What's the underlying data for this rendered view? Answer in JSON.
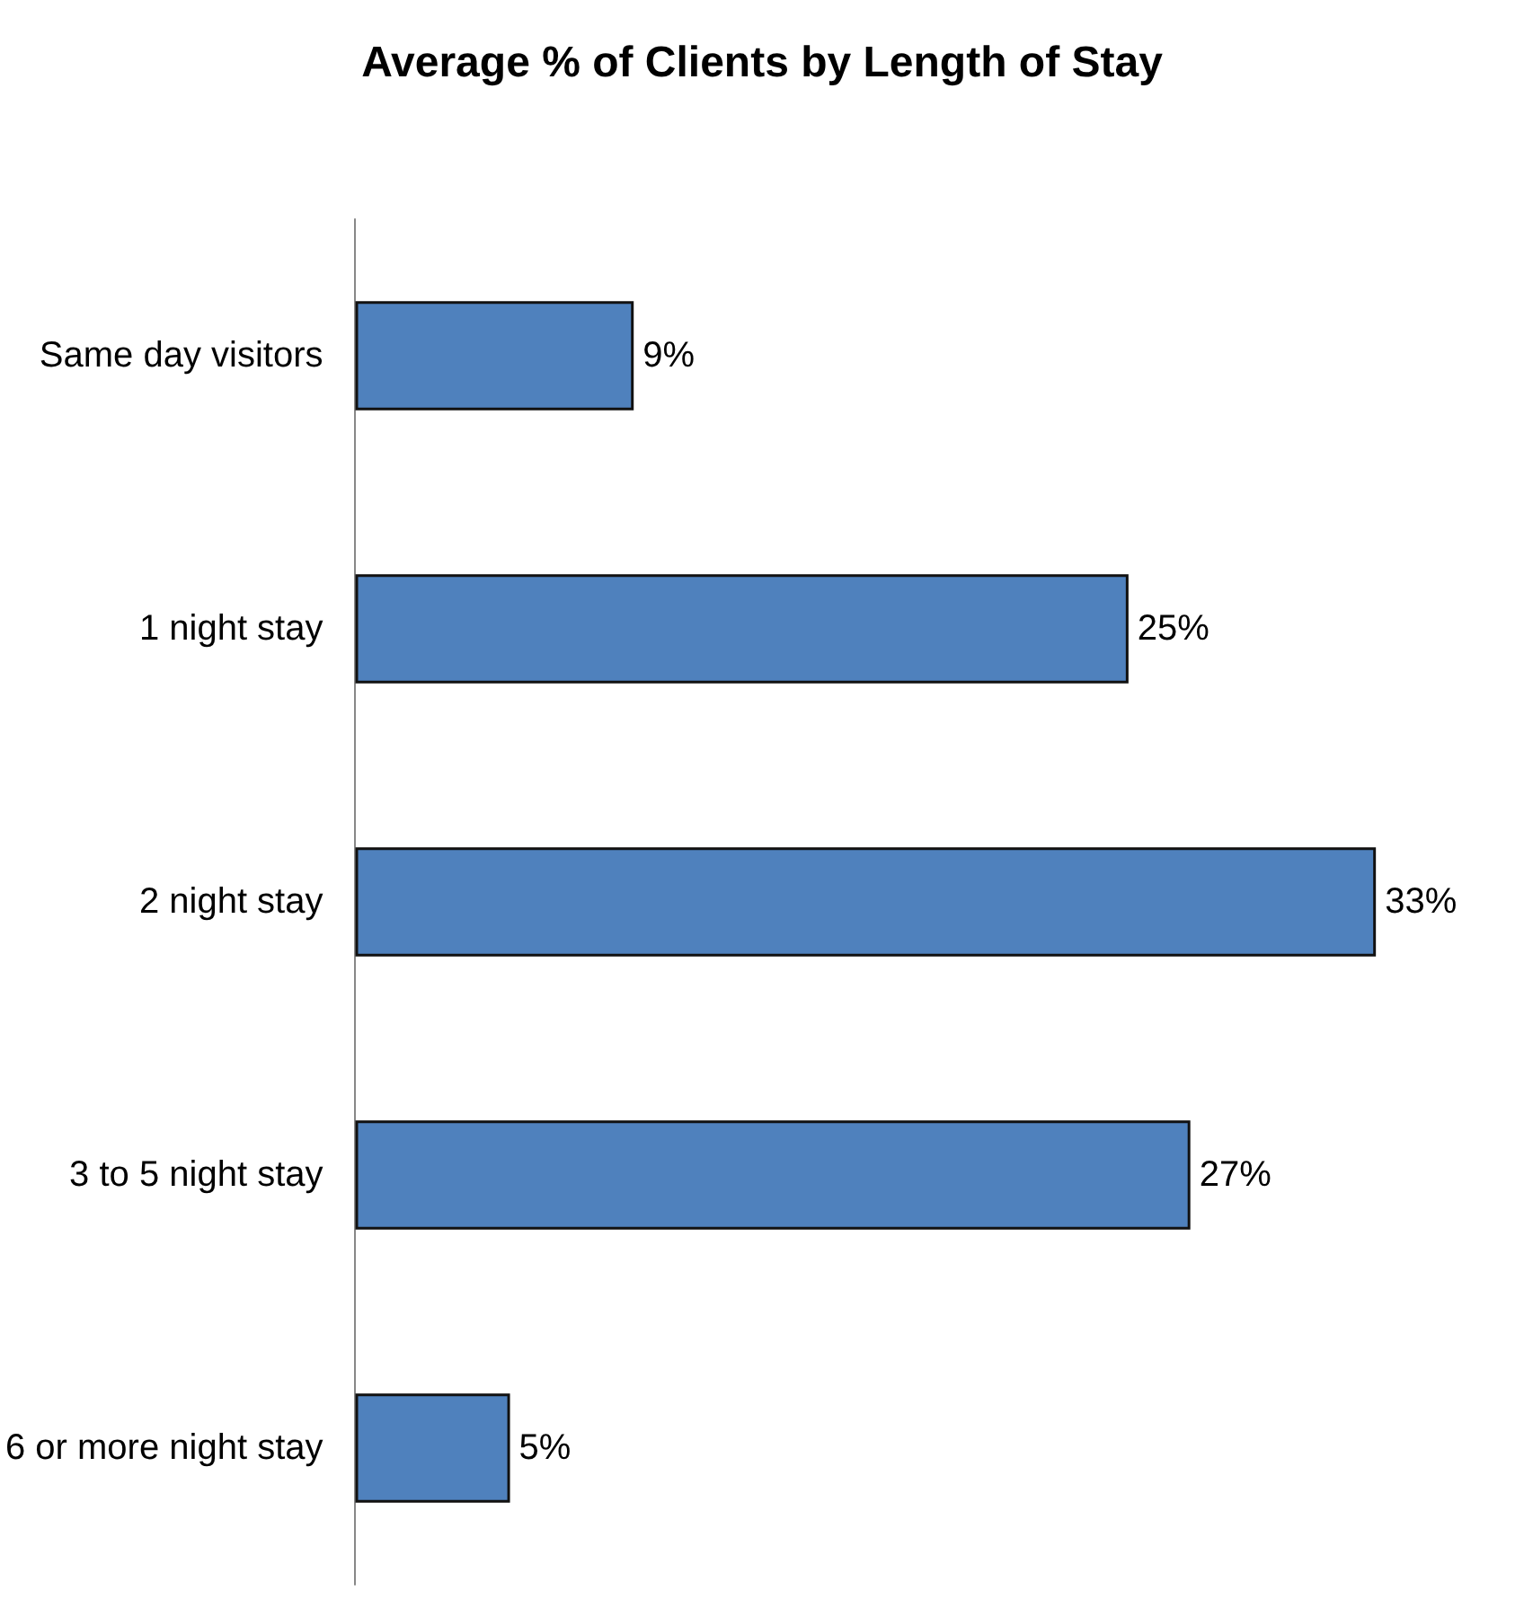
{
  "chart_data": {
    "type": "bar",
    "orientation": "horizontal",
    "title": "Average % of Clients by Length of Stay",
    "categories": [
      "Same day visitors",
      "1 night stay",
      "2 night stay",
      "3 to 5 night stay",
      "6 or more night stay"
    ],
    "values": [
      9,
      25,
      33,
      27,
      5
    ],
    "value_labels": [
      "9%",
      "25%",
      "33%",
      "27%",
      "5%"
    ],
    "color": "#4f81bd"
  }
}
